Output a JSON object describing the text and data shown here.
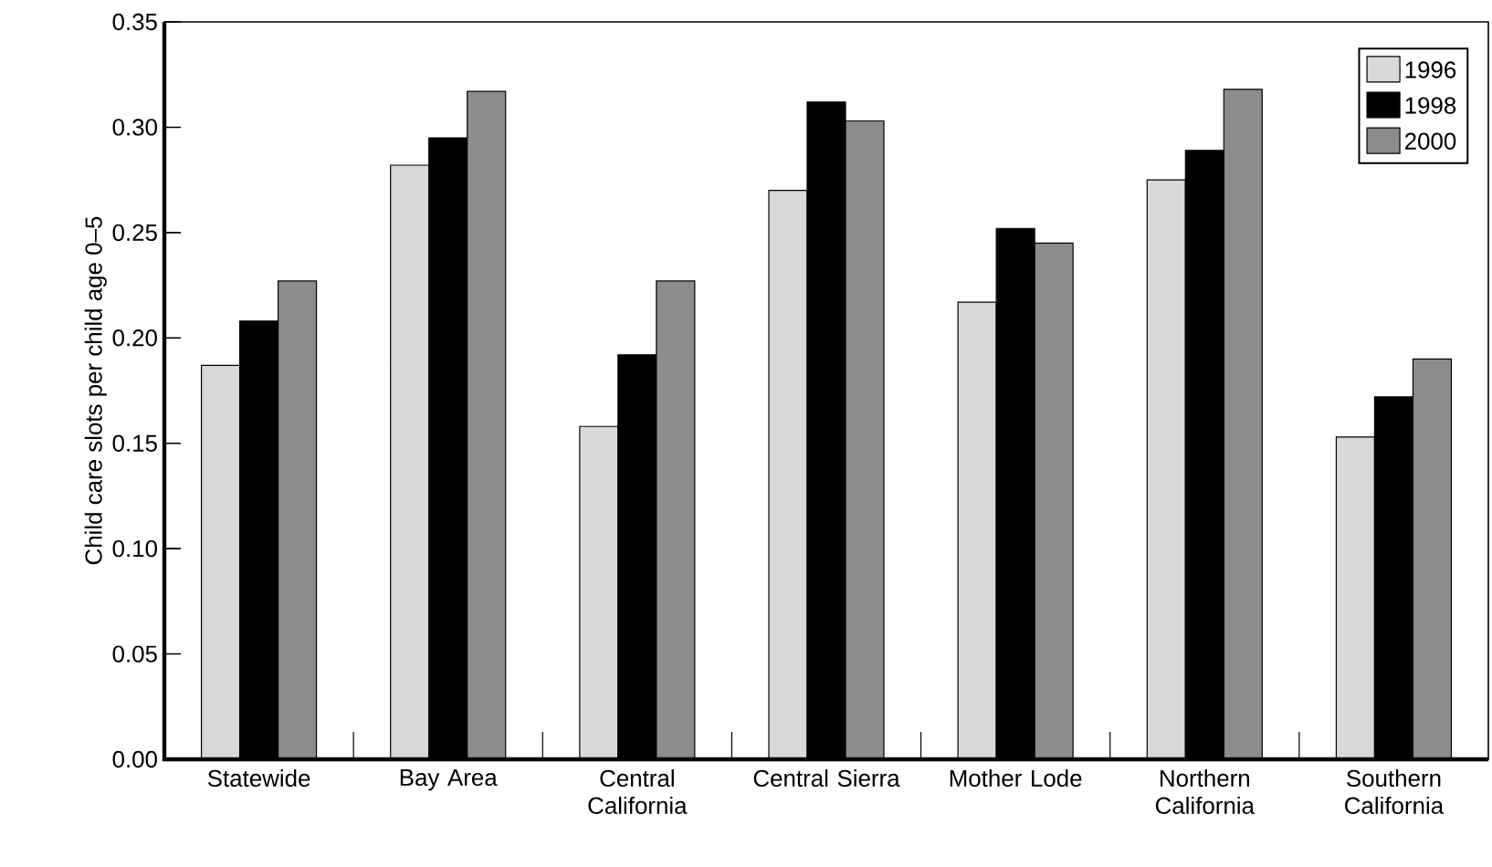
{
  "chart_data": {
    "type": "bar",
    "ylabel": "Child care slots per child age 0–5",
    "categories": [
      "Statewide",
      "Bay Area",
      "Central California",
      "Central Sierra",
      "Mother Lode",
      "Northern California",
      "Southern California"
    ],
    "series": [
      {
        "name": "1996",
        "color": "#d9d9d9",
        "values": [
          0.187,
          0.282,
          0.158,
          0.27,
          0.217,
          0.275,
          0.153
        ]
      },
      {
        "name": "1998",
        "color": "#000000",
        "values": [
          0.208,
          0.295,
          0.192,
          0.312,
          0.252,
          0.289,
          0.172
        ]
      },
      {
        "name": "2000",
        "color": "#8c8c8c",
        "values": [
          0.227,
          0.317,
          0.227,
          0.303,
          0.245,
          0.318,
          0.19
        ]
      }
    ],
    "ylim": [
      0,
      0.35
    ],
    "yticks": [
      {
        "value": 0,
        "label": "0.00"
      },
      {
        "value": 0.05,
        "label": "0.05"
      },
      {
        "value": 0.1,
        "label": "0.10"
      },
      {
        "value": 0.15,
        "label": "0.15"
      },
      {
        "value": 0.2,
        "label": "0.20"
      },
      {
        "value": 0.25,
        "label": "0.25"
      },
      {
        "value": 0.3,
        "label": "0.30"
      },
      {
        "value": 0.35,
        "label": "0.35"
      }
    ],
    "grid": false,
    "legend": "top right"
  }
}
